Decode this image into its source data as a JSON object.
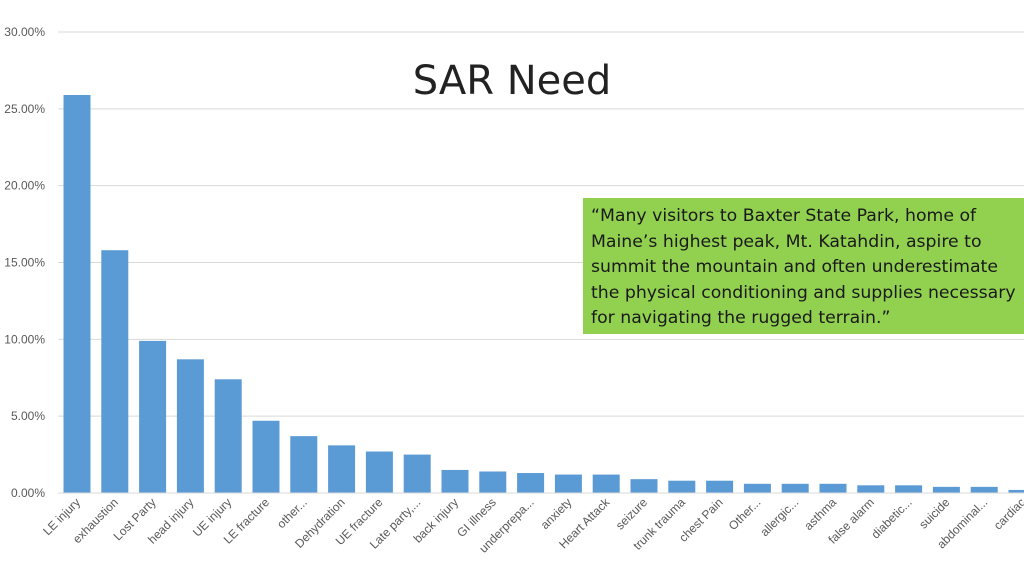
{
  "title": "SAR Need",
  "quote": "“Many visitors to Baxter State Park, home of Maine’s highest peak, Mt. Katahdin, aspire to summit the mountain and often underestimate the physical conditioning and supplies necessary for navigating the rugged terrain.”",
  "colors": {
    "bar": "#5b9bd5",
    "quote_bg": "#92d050",
    "grid": "#d9d9d9"
  },
  "chart_data": {
    "type": "bar",
    "title": "SAR Need",
    "xlabel": "",
    "ylabel": "",
    "ylim": [
      0,
      30
    ],
    "y_ticks": [
      "0.00%",
      "5.00%",
      "10.00%",
      "15.00%",
      "20.00%",
      "25.00%",
      "30.00%"
    ],
    "grid": true,
    "categories": [
      "LE injury",
      "exhaustion",
      "Lost Party",
      "head injury",
      "UE injury",
      "LE fracture",
      "other...",
      "Dehydration",
      "UE fracture",
      "Late party,...",
      "back injury",
      "GI illness",
      "underprepa...",
      "anxiety",
      "Heart Attack",
      "seizure",
      "trunk trauma",
      "chest Pain",
      "Other...",
      "allergic...",
      "asthma",
      "false alarm",
      "diabetic...",
      "suicide",
      "abdominal...",
      "cardiac"
    ],
    "values": [
      25.9,
      15.8,
      9.9,
      8.7,
      7.4,
      4.7,
      3.7,
      3.1,
      2.7,
      2.5,
      1.5,
      1.4,
      1.3,
      1.2,
      1.2,
      0.9,
      0.8,
      0.8,
      0.6,
      0.6,
      0.6,
      0.5,
      0.5,
      0.4,
      0.4,
      0.2
    ]
  }
}
